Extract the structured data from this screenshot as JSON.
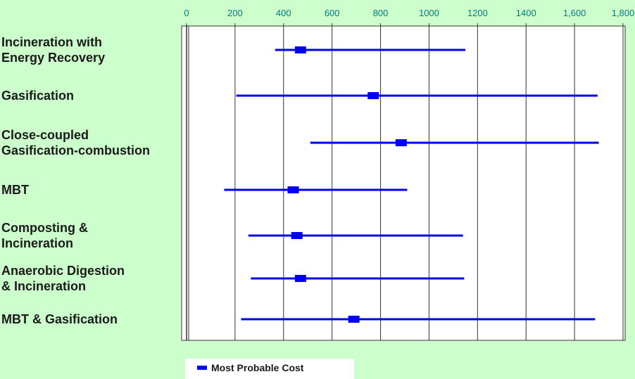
{
  "chart_data": {
    "type": "range",
    "x_ticks": [
      "0",
      "200",
      "400",
      "600",
      "800",
      "1000",
      "1200",
      "1400",
      "1,600",
      "1,800"
    ],
    "xlim": [
      0,
      1800
    ],
    "grid": true,
    "categories": [
      {
        "label_lines": [
          "Incineration with",
          "Energy Recovery"
        ],
        "min": 365,
        "probable": 470,
        "max": 1150
      },
      {
        "label_lines": [
          "Gasification"
        ],
        "min": 205,
        "probable": 770,
        "max": 1695
      },
      {
        "label_lines": [
          "Close-coupled",
          "Gasification-combustion"
        ],
        "min": 510,
        "probable": 885,
        "max": 1700
      },
      {
        "label_lines": [
          "MBT"
        ],
        "min": 155,
        "probable": 440,
        "max": 910
      },
      {
        "label_lines": [
          "Composting &",
          "Incineration"
        ],
        "min": 255,
        "probable": 455,
        "max": 1140
      },
      {
        "label_lines": [
          "Anaerobic Digestion",
          "& Incineration"
        ],
        "min": 265,
        "probable": 470,
        "max": 1145
      },
      {
        "label_lines": [
          "MBT & Gasification"
        ],
        "min": 225,
        "probable": 690,
        "max": 1685
      }
    ],
    "legend": {
      "label": "Most Probable Cost",
      "position": "bottom"
    },
    "colors": {
      "series": "#0000ee",
      "background": "#ccffcc",
      "plot": "#ffffff",
      "tick_text": "#007c7c"
    }
  }
}
